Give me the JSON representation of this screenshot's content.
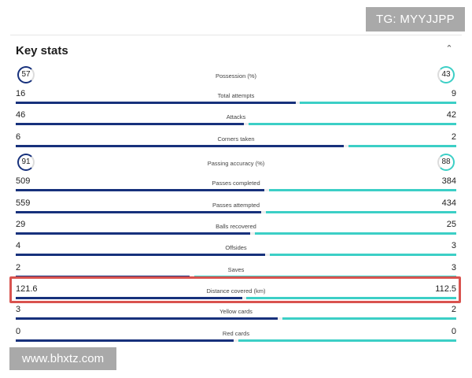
{
  "watermarks": {
    "top": "TG: MYYJJPP",
    "bottom": "www.bhxtz.com"
  },
  "panel": {
    "title": "Key stats",
    "collapse_icon": "chevron-up-icon"
  },
  "colors": {
    "home": "#17317c",
    "away": "#3ccfc6",
    "highlight": "#d9534f"
  },
  "stats": [
    {
      "label": "Possession (%)",
      "home": "57",
      "away": "43",
      "ring": true,
      "home_share": 0.57
    },
    {
      "label": "Total attempts",
      "home": "16",
      "away": "9",
      "home_share": 0.64
    },
    {
      "label": "Attacks",
      "home": "46",
      "away": "42",
      "home_share": 0.523
    },
    {
      "label": "Corners taken",
      "home": "6",
      "away": "2",
      "home_share": 0.75
    },
    {
      "label": "Passing accuracy (%)",
      "home": "91",
      "away": "88",
      "ring": true,
      "home_share": 0.508
    },
    {
      "label": "Passes completed",
      "home": "509",
      "away": "384",
      "home_share": 0.57
    },
    {
      "label": "Passes attempted",
      "home": "559",
      "away": "434",
      "home_share": 0.563
    },
    {
      "label": "Balls recovered",
      "home": "29",
      "away": "25",
      "home_share": 0.537
    },
    {
      "label": "Offsides",
      "home": "4",
      "away": "3",
      "home_share": 0.571
    },
    {
      "label": "Saves",
      "home": "2",
      "away": "3",
      "home_share": 0.4
    },
    {
      "label": "Distance covered (km)",
      "home": "121.6",
      "away": "112.5",
      "highlighted": true,
      "home_share": 0.519
    },
    {
      "label": "Yellow cards",
      "home": "3",
      "away": "2",
      "home_share": 0.6
    },
    {
      "label": "Red cards",
      "home": "0",
      "away": "0",
      "home_share": 0.5
    }
  ]
}
